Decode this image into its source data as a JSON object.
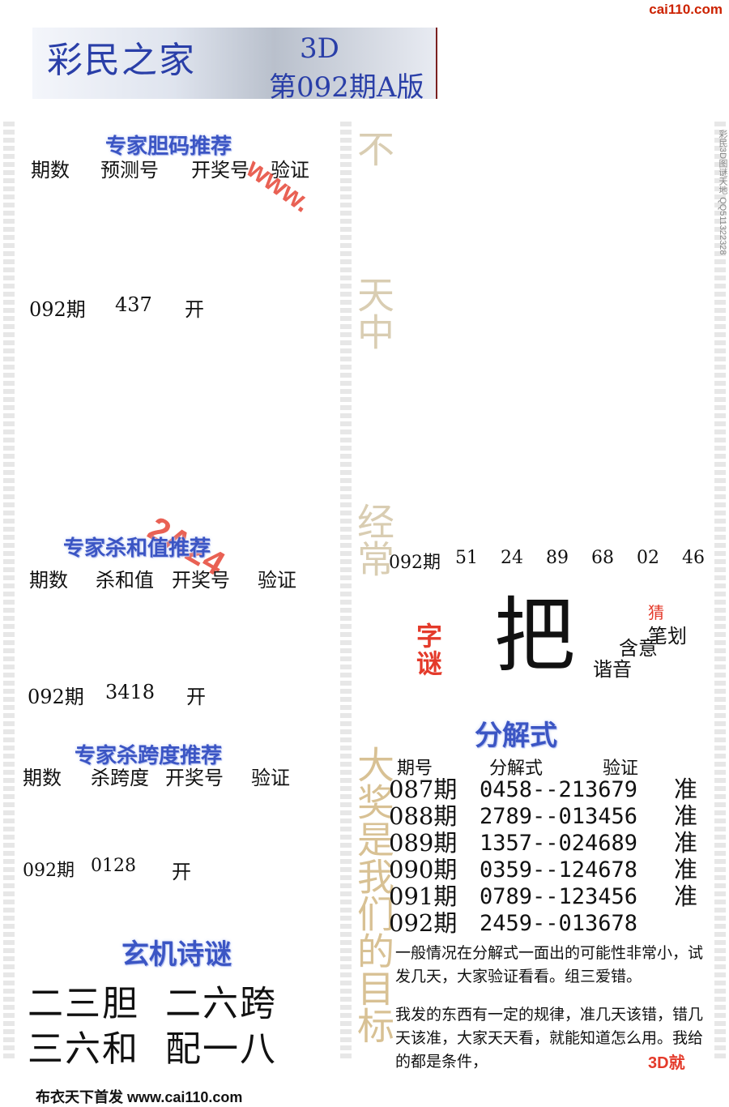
{
  "site": "cai110.com",
  "header": {
    "title": "彩民之家",
    "game": "3D",
    "issue": "第092期A版"
  },
  "watermark": {
    "url": "www.",
    "strip": "2A24"
  },
  "dan": {
    "heading": "专家胆码推荐",
    "cols": [
      "期数",
      "预测号",
      "开奖号",
      "验证"
    ],
    "row": {
      "period": "092期",
      "pred": "437",
      "draw": "开"
    }
  },
  "sum": {
    "heading": "专家杀和值推荐",
    "cols": [
      "期数",
      "杀和值",
      "开奖号",
      "验证"
    ],
    "row": {
      "period": "092期",
      "pred": "3418",
      "draw": "开"
    }
  },
  "span": {
    "heading": "专家杀跨度推荐",
    "cols": [
      "期数",
      "杀跨度",
      "开奖号",
      "验证"
    ],
    "row": {
      "period": "092期",
      "pred": "0128",
      "draw": "开"
    }
  },
  "poem": {
    "heading": "玄机诗谜",
    "line1": "二三胆  二六跨",
    "line2": "三六和  配一八"
  },
  "pairs": {
    "period": "092期",
    "nums": [
      "51",
      "24",
      "89",
      "68",
      "02",
      "46"
    ]
  },
  "riddle": {
    "label": "字谜",
    "char": "把",
    "side": [
      "猜",
      "笔划",
      "含意",
      "谐音"
    ]
  },
  "decomp": {
    "heading": "分解式",
    "cols": [
      "期号",
      "分解式",
      "验证"
    ],
    "rows": [
      {
        "p": "087期",
        "f": "0458--213679",
        "v": "准"
      },
      {
        "p": "088期",
        "f": "2789--013456",
        "v": "准"
      },
      {
        "p": "089期",
        "f": "1357--024689",
        "v": "准"
      },
      {
        "p": "090期",
        "f": "0359--124678",
        "v": "准"
      },
      {
        "p": "091期",
        "f": "0789--123456",
        "v": "准"
      },
      {
        "p": "092期",
        "f": "2459--013678",
        "v": ""
      }
    ],
    "note1": "一般情况在分解式一面出的可能性非常小，试发几天，大家验证看看。组三爱错。",
    "note2": "我发的东西有一定的规律，准几天该错，错几天该准，大家天天看，就能知道怎么用。我给的都是条件，",
    "note_tag": "3D就"
  },
  "vert": {
    "a": "不",
    "b": "天中",
    "c": "经常",
    "d": "大奖是我们的目标"
  },
  "side_text": "彩民3D图谜天地 QQ511322328",
  "footer": "布衣天下首发 www.cai110.com"
}
